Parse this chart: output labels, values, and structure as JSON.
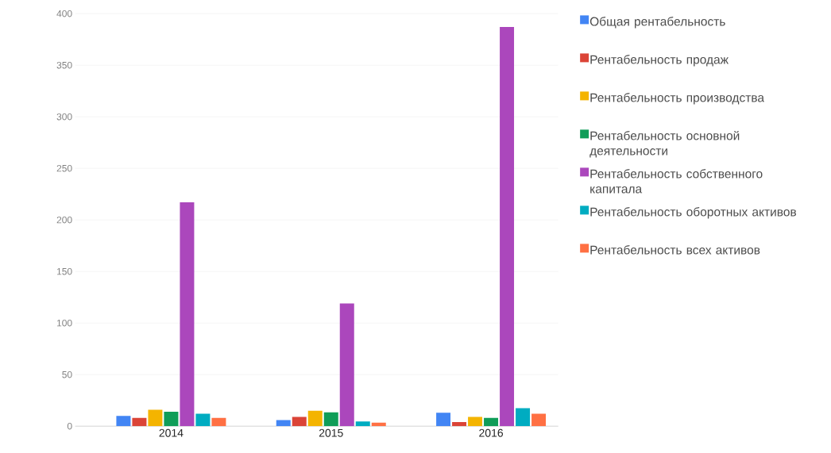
{
  "chart_data": {
    "type": "bar",
    "categories": [
      "2014",
      "2015",
      "2016"
    ],
    "series": [
      {
        "name": "Общая рентабельность",
        "color": "#4285f4",
        "values": [
          10,
          6,
          13
        ]
      },
      {
        "name": "Рентабельность продаж",
        "color": "#db4437",
        "values": [
          8,
          9,
          4
        ]
      },
      {
        "name": "Рентабельность производства",
        "color": "#f4b400",
        "values": [
          16,
          15,
          9
        ]
      },
      {
        "name": "Рентабельность основной деятельности",
        "color": "#0f9d58",
        "values": [
          14,
          13.5,
          8
        ]
      },
      {
        "name": "Рентабельность собственного капитала",
        "color": "#ab47bc",
        "values": [
          217,
          119,
          387
        ]
      },
      {
        "name": "Рентабельность оборотных активов",
        "color": "#00acc1",
        "values": [
          12,
          4.5,
          17.5
        ]
      },
      {
        "name": "Рентабельность всех активов",
        "color": "#ff7043",
        "values": [
          8,
          3.5,
          12
        ]
      }
    ],
    "ylim": [
      0,
      400
    ],
    "yticks": [
      0,
      50,
      100,
      150,
      200,
      250,
      300,
      350,
      400
    ],
    "grid": "y",
    "legend": "right"
  }
}
